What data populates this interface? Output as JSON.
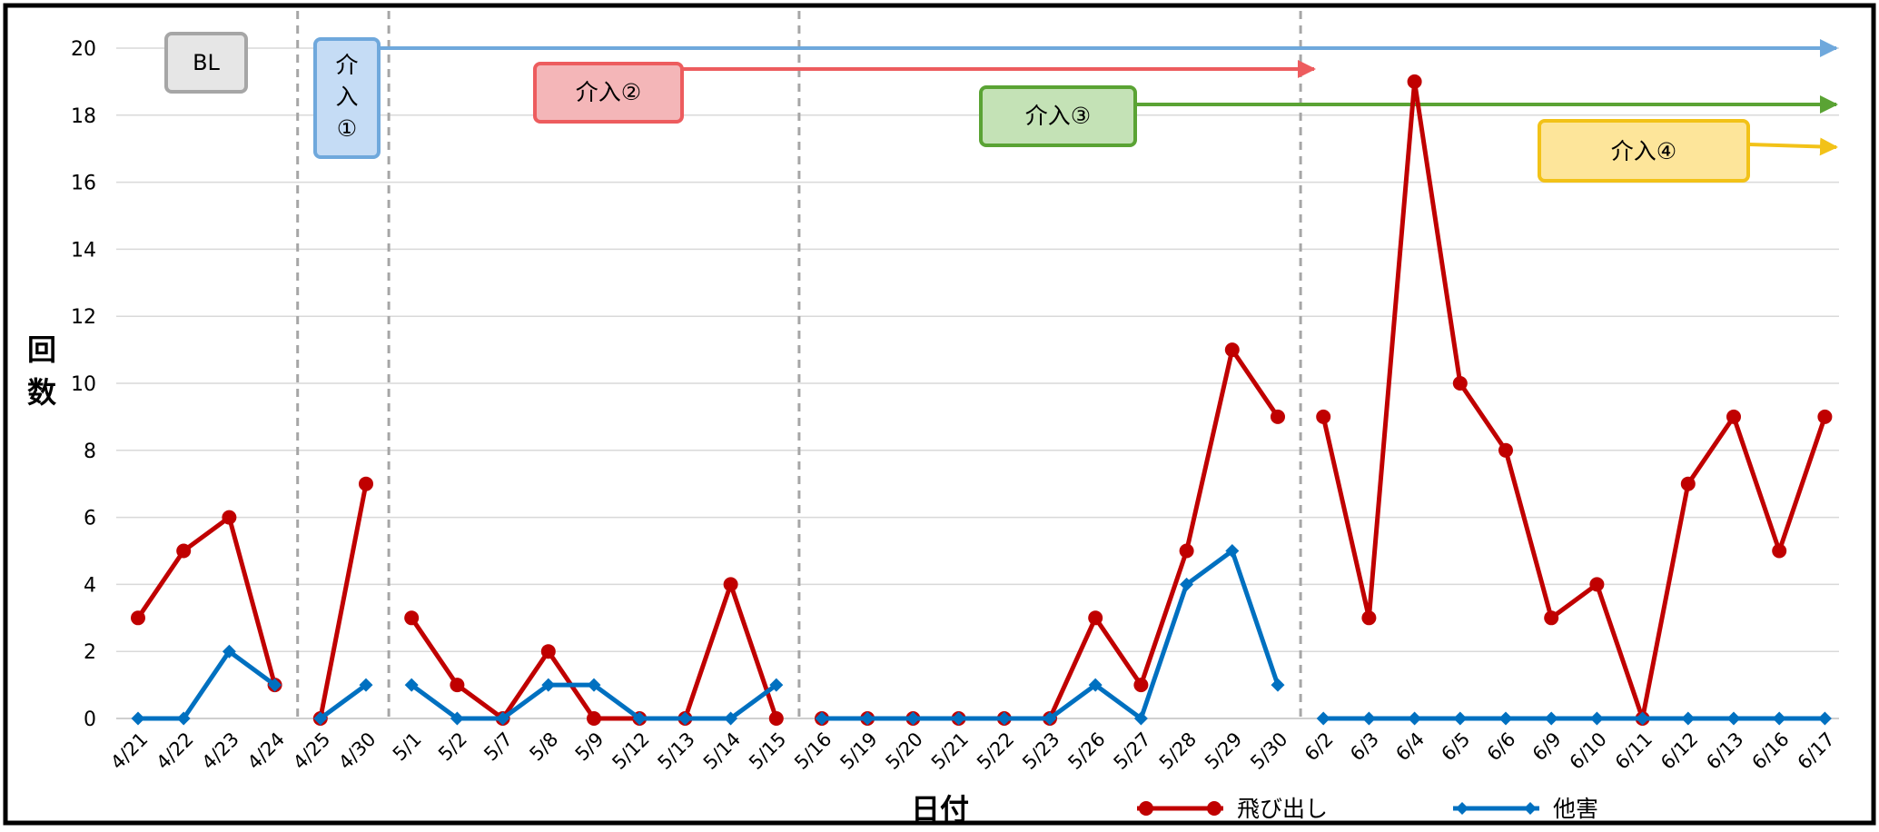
{
  "chart_data": {
    "type": "line",
    "title": "",
    "xlabel": "日付",
    "ylabel": "回数",
    "ylim": [
      0,
      20
    ],
    "yticks": [
      0,
      2,
      4,
      6,
      8,
      10,
      12,
      14,
      16,
      18,
      20
    ],
    "grid": true,
    "legend_position": "bottom-right",
    "categories": [
      "4/21",
      "4/22",
      "4/23",
      "4/24",
      "4/25",
      "4/30",
      "5/1",
      "5/2",
      "5/7",
      "5/8",
      "5/9",
      "5/12",
      "5/13",
      "5/14",
      "5/15",
      "5/16",
      "5/19",
      "5/20",
      "5/21",
      "5/22",
      "5/23",
      "5/26",
      "5/27",
      "5/28",
      "5/29",
      "5/30",
      "6/2",
      "6/3",
      "6/4",
      "6/5",
      "6/6",
      "6/9",
      "6/10",
      "6/11",
      "6/12",
      "6/13",
      "6/16",
      "6/17"
    ],
    "phase_boundaries_after": [
      "4/24",
      "4/30",
      "5/15",
      "5/30"
    ],
    "series": [
      {
        "name": "飛び出し",
        "color": "#c00000",
        "marker": "circle",
        "values": [
          3,
          5,
          6,
          1,
          0,
          7,
          3,
          1,
          0,
          2,
          0,
          0,
          0,
          4,
          0,
          0,
          0,
          0,
          0,
          0,
          0,
          3,
          1,
          5,
          11,
          9,
          9,
          3,
          19,
          10,
          8,
          3,
          4,
          0,
          7,
          9,
          5,
          9
        ]
      },
      {
        "name": "他害",
        "color": "#0070c0",
        "marker": "diamond",
        "values": [
          0,
          0,
          2,
          1,
          0,
          1,
          1,
          0,
          0,
          1,
          1,
          0,
          0,
          0,
          1,
          0,
          0,
          0,
          0,
          0,
          0,
          1,
          0,
          4,
          5,
          1,
          0,
          0,
          0,
          0,
          0,
          0,
          0,
          0,
          0,
          0,
          0,
          0
        ]
      }
    ],
    "annotations": [
      {
        "label": "BL",
        "fill": "#e6e6e6",
        "stroke": "#a6a6a6"
      },
      {
        "label": "介入①",
        "fill": "#c5dcf5",
        "stroke": "#6fa8dc",
        "arrow_color": "#6fa8dc"
      },
      {
        "label": "介入②",
        "fill": "#f4b6b8",
        "stroke": "#ed5c5e",
        "arrow_color": "#ed5c5e"
      },
      {
        "label": "介入③",
        "fill": "#c4e2b6",
        "stroke": "#5aa334",
        "arrow_color": "#5aa334"
      },
      {
        "label": "介入④",
        "fill": "#fde59a",
        "stroke": "#f2c218",
        "arrow_color": "#f2c218"
      }
    ]
  }
}
